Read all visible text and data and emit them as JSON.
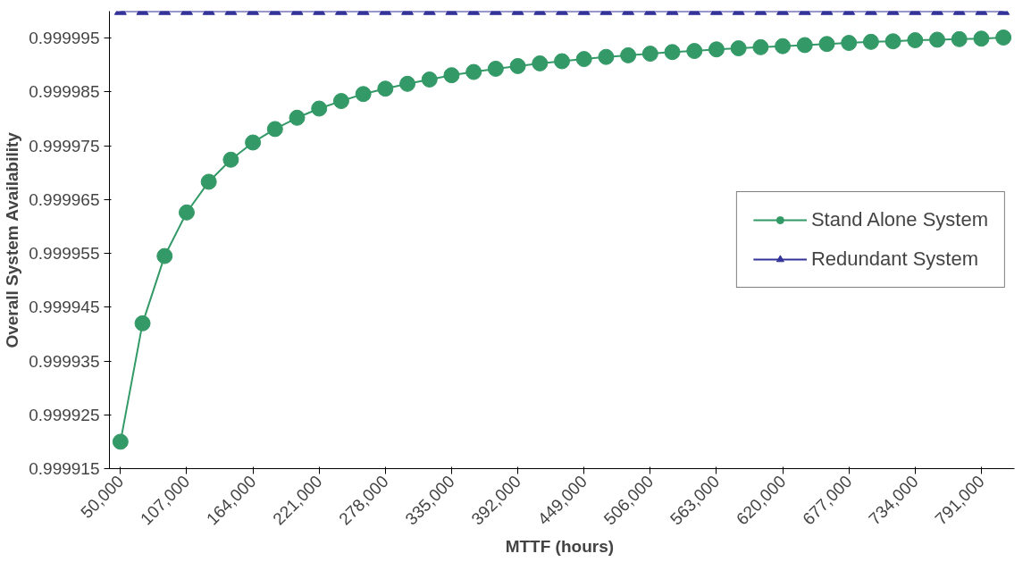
{
  "chart_data": {
    "type": "line",
    "xlabel": "MTTF  (hours)",
    "ylabel": "Overall System Availability",
    "categories": [
      "50,000",
      null,
      null,
      "107,000",
      null,
      null,
      "164,000",
      null,
      null,
      "221,000",
      null,
      null,
      "278,000",
      null,
      null,
      "335,000",
      null,
      null,
      "392,000",
      null,
      null,
      "449,000",
      null,
      null,
      "506,000",
      null,
      null,
      "563,000",
      null,
      null,
      "620,000",
      null,
      null,
      "677,000",
      null,
      null,
      "734,000",
      null,
      null,
      "791,000",
      null
    ],
    "ylim": [
      0.999915,
      1.0
    ],
    "yticks": [
      0.999915,
      0.999925,
      0.999935,
      0.999945,
      0.999955,
      0.999965,
      0.999975,
      0.999985,
      0.999995
    ],
    "grid": false,
    "legend": "right",
    "series": [
      {
        "name": "Stand Alone System",
        "color": "#339966",
        "marker": "circle",
        "values": [
          0.99992,
          0.999942,
          0.9999545,
          0.9999626,
          0.9999683,
          0.9999724,
          0.9999756,
          0.9999781,
          0.9999802,
          0.9999819,
          0.9999833,
          0.9999846,
          0.9999856,
          0.9999865,
          0.9999873,
          0.9999881,
          0.9999887,
          0.9999893,
          0.9999898,
          0.9999903,
          0.9999907,
          0.9999911,
          0.9999915,
          0.9999918,
          0.9999921,
          0.9999924,
          0.9999926,
          0.9999929,
          0.9999931,
          0.9999933,
          0.9999935,
          0.9999937,
          0.9999939,
          0.9999941,
          0.9999943,
          0.9999944,
          0.9999946,
          0.9999947,
          0.9999948,
          0.9999949,
          0.9999951
        ]
      },
      {
        "name": "Redundant System",
        "color": "#333399",
        "marker": "triangle",
        "values": [
          1.0,
          1.0,
          1.0,
          1.0,
          1.0,
          1.0,
          1.0,
          1.0,
          1.0,
          1.0,
          1.0,
          1.0,
          1.0,
          1.0,
          1.0,
          1.0,
          1.0,
          1.0,
          1.0,
          1.0,
          1.0,
          1.0,
          1.0,
          1.0,
          1.0,
          1.0,
          1.0,
          1.0,
          1.0,
          1.0,
          1.0,
          1.0,
          1.0,
          1.0,
          1.0,
          1.0,
          1.0,
          1.0,
          1.0,
          1.0,
          1.0
        ]
      }
    ]
  }
}
